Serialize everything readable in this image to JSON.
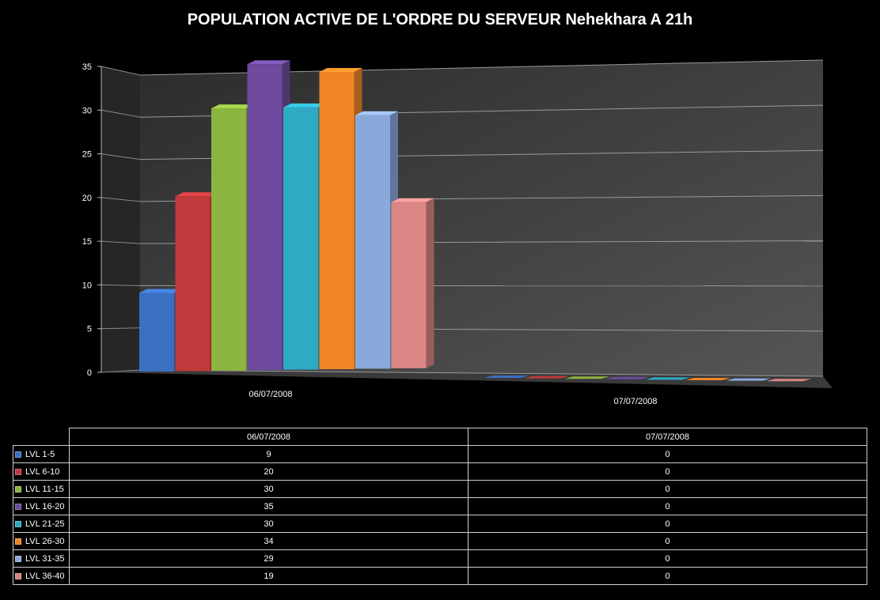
{
  "chart_data": {
    "type": "bar",
    "title": "POPULATION ACTIVE DE L'ORDRE DU SERVEUR Nehekhara A 21h",
    "categories": [
      "06/07/2008",
      "07/07/2008"
    ],
    "series": [
      {
        "name": "LVL 1-5",
        "values": [
          9,
          0
        ],
        "color": "#3b6fc0"
      },
      {
        "name": "LVL 6-10",
        "values": [
          20,
          0
        ],
        "color": "#c0393b"
      },
      {
        "name": "LVL 11-15",
        "values": [
          30,
          0
        ],
        "color": "#8cb440"
      },
      {
        "name": "LVL 16-20",
        "values": [
          35,
          0
        ],
        "color": "#6e4b9e"
      },
      {
        "name": "LVL 21-25",
        "values": [
          30,
          0
        ],
        "color": "#2fa9c4"
      },
      {
        "name": "LVL 26-30",
        "values": [
          34,
          0
        ],
        "color": "#f08526"
      },
      {
        "name": "LVL 31-35",
        "values": [
          29,
          0
        ],
        "color": "#8ba8dc"
      },
      {
        "name": "LVL 36-40",
        "values": [
          19,
          0
        ],
        "color": "#d98685"
      }
    ],
    "yticks": [
      "0",
      "5",
      "10",
      "15",
      "20",
      "25",
      "30",
      "35"
    ],
    "ylim": [
      0,
      35
    ],
    "grid": true,
    "legend": "data-table"
  }
}
